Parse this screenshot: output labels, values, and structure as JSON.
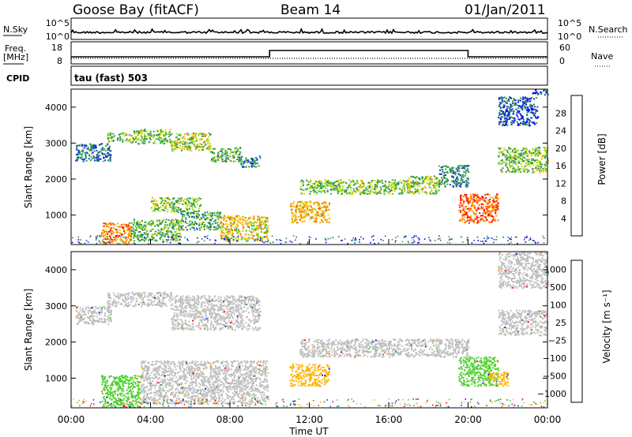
{
  "header": {
    "station": "Goose Bay (fitACF)",
    "beam": "Beam 14",
    "date": "01/Jan/2011"
  },
  "strips": {
    "nsky_label": "N.Sky",
    "nsky_ticks": [
      "10^5",
      "10^0"
    ],
    "nsearch_label": "N.Search",
    "nsearch_ticks": [
      "10^5",
      "10^0"
    ],
    "freq_label": "Freq.",
    "freq_unit": "[MHz]",
    "freq_ticks": [
      "18",
      "8"
    ],
    "nave_label": "Nave",
    "nave_ticks": [
      "60",
      "0"
    ],
    "cpid_label": "CPID",
    "cpid_value": "tau (fast) 503"
  },
  "colors": {
    "background": "#ffffff",
    "frame": "#000000",
    "power_scale": [
      "#0000ff",
      "#1e46b4",
      "#2d8c5a",
      "#3cb43c",
      "#c8dc00",
      "#ffa500",
      "#ff6400",
      "#ff0000"
    ],
    "velocity_scale": [
      "#1e1eb4",
      "#1e64c8",
      "#3c963c",
      "#50d232",
      "#bebebe",
      "#ffb400",
      "#ff7800",
      "#ff0000"
    ]
  },
  "chart_data": [
    {
      "type": "heatmap",
      "name": "power-panel",
      "xlabel": "Time UT",
      "ylabel": "Slant Range [km]",
      "xlim": [
        0,
        24
      ],
      "ylim": [
        180,
        4500
      ],
      "x_ticks": [
        "00:00",
        "04:00",
        "08:00",
        "12:00",
        "16:00",
        "20:00",
        "00:00"
      ],
      "y_ticks": [
        1000,
        2000,
        3000,
        4000
      ],
      "colorbar": {
        "label": "Power [dB]",
        "ticks": [
          4,
          8,
          12,
          16,
          20,
          24,
          28
        ],
        "range": [
          0,
          32
        ]
      },
      "echo_regions": [
        {
          "t0": 0.2,
          "t1": 2.0,
          "r0": 2500,
          "r1": 3000,
          "level": 8
        },
        {
          "t0": 1.8,
          "t1": 3.0,
          "r0": 3050,
          "r1": 3300,
          "level": 14
        },
        {
          "t0": 3.0,
          "t1": 5.0,
          "r0": 3000,
          "r1": 3400,
          "level": 14
        },
        {
          "t0": 5.0,
          "t1": 7.0,
          "r0": 2800,
          "r1": 3300,
          "level": 17
        },
        {
          "t0": 7.0,
          "t1": 8.5,
          "r0": 2500,
          "r1": 2900,
          "level": 12
        },
        {
          "t0": 8.5,
          "t1": 9.5,
          "r0": 2350,
          "r1": 2650,
          "level": 8
        },
        {
          "t0": 1.5,
          "t1": 3.0,
          "r0": 200,
          "r1": 800,
          "level": 24
        },
        {
          "t0": 3.0,
          "t1": 5.5,
          "r0": 300,
          "r1": 900,
          "level": 14
        },
        {
          "t0": 4.0,
          "t1": 6.5,
          "r0": 1100,
          "r1": 1500,
          "level": 15
        },
        {
          "t0": 5.5,
          "t1": 7.5,
          "r0": 600,
          "r1": 1100,
          "level": 12
        },
        {
          "t0": 7.5,
          "t1": 9.9,
          "r0": 300,
          "r1": 1000,
          "level": 20
        },
        {
          "t0": 11.0,
          "t1": 13.0,
          "r0": 800,
          "r1": 1400,
          "level": 22
        },
        {
          "t0": 11.5,
          "t1": 14.0,
          "r0": 1600,
          "r1": 2000,
          "level": 14
        },
        {
          "t0": 14.0,
          "t1": 17.0,
          "r0": 1600,
          "r1": 2000,
          "level": 15
        },
        {
          "t0": 17.0,
          "t1": 18.5,
          "r0": 1600,
          "r1": 2100,
          "level": 16
        },
        {
          "t0": 18.5,
          "t1": 20.0,
          "r0": 1800,
          "r1": 2400,
          "level": 10
        },
        {
          "t0": 19.5,
          "t1": 21.5,
          "r0": 800,
          "r1": 1600,
          "level": 26
        },
        {
          "t0": 21.5,
          "t1": 24.0,
          "r0": 2200,
          "r1": 2900,
          "level": 15
        },
        {
          "t0": 21.5,
          "t1": 23.5,
          "r0": 3500,
          "r1": 4300,
          "level": 6
        },
        {
          "t0": 23.2,
          "t1": 24.0,
          "r0": 4350,
          "r1": 4500,
          "level": 6
        }
      ]
    },
    {
      "type": "heatmap",
      "name": "velocity-panel",
      "xlabel": "Time UT",
      "ylabel": "Slant Range [km]",
      "xlim": [
        0,
        24
      ],
      "ylim": [
        180,
        4500
      ],
      "x_ticks": [
        "00:00",
        "04:00",
        "08:00",
        "12:00",
        "16:00",
        "20:00",
        "00:00"
      ],
      "y_ticks": [
        1000,
        2000,
        3000,
        4000
      ],
      "colorbar": {
        "label": "Velocity [m s⁻¹]",
        "ticks": [
          "1000",
          "500",
          "100",
          "25",
          "−25",
          "−100",
          "−500",
          "−1000"
        ]
      },
      "echo_regions": [
        {
          "t0": 0.2,
          "t1": 2.0,
          "r0": 2500,
          "r1": 3000,
          "class": "gray"
        },
        {
          "t0": 1.8,
          "t1": 5.0,
          "r0": 3000,
          "r1": 3400,
          "class": "gray"
        },
        {
          "t0": 5.0,
          "t1": 9.5,
          "r0": 2350,
          "r1": 3300,
          "class": "gray"
        },
        {
          "t0": 1.5,
          "t1": 3.5,
          "r0": 200,
          "r1": 1100,
          "class": "green"
        },
        {
          "t0": 3.5,
          "t1": 9.9,
          "r0": 300,
          "r1": 1500,
          "class": "gray"
        },
        {
          "t0": 11.0,
          "t1": 13.0,
          "r0": 800,
          "r1": 1400,
          "class": "orange"
        },
        {
          "t0": 11.5,
          "t1": 20.0,
          "r0": 1600,
          "r1": 2100,
          "class": "gray"
        },
        {
          "t0": 19.5,
          "t1": 21.5,
          "r0": 800,
          "r1": 1600,
          "class": "green"
        },
        {
          "t0": 21.0,
          "t1": 22.0,
          "r0": 800,
          "r1": 1200,
          "class": "orange"
        },
        {
          "t0": 21.5,
          "t1": 24.0,
          "r0": 2200,
          "r1": 2900,
          "class": "gray"
        },
        {
          "t0": 21.5,
          "t1": 24.0,
          "r0": 3500,
          "r1": 4500,
          "class": "gray"
        }
      ]
    }
  ],
  "nave_step": {
    "t_start": 10.0,
    "t_end": 20.0
  }
}
